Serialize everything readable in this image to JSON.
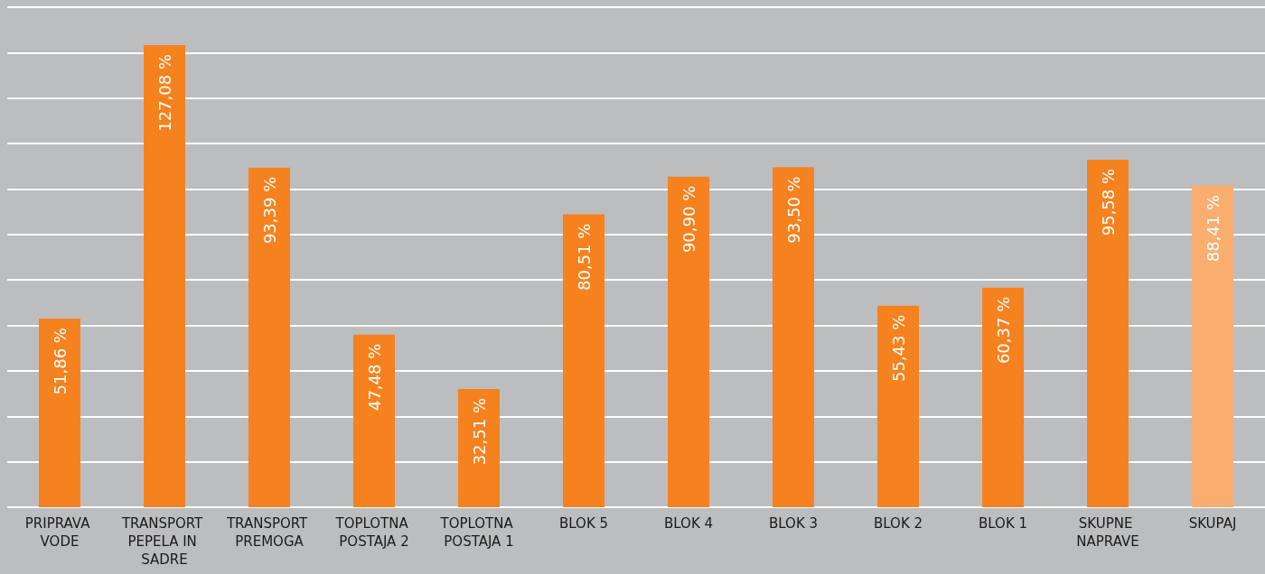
{
  "chart_data": {
    "type": "bar",
    "categories": [
      "PRIPRAVA VODE",
      "TRANSPORT PEPELA IN SADRE",
      "TRANSPORT PREMOGA",
      "TOPLOTNA POSTAJA 2",
      "TOPLOTNA POSTAJA 1",
      "BLOK 5",
      "BLOK 4",
      "BLOK 3",
      "BLOK 2",
      "BLOK 1",
      "SKUPNE NAPRAVE",
      "SKUPAJ"
    ],
    "values": [
      51.86,
      127.08,
      93.39,
      47.48,
      32.51,
      80.51,
      90.9,
      93.5,
      55.43,
      60.37,
      95.58,
      88.41
    ],
    "colors": [
      "#f5821f",
      "#f5821f",
      "#f5821f",
      "#f5821f",
      "#f5821f",
      "#f5821f",
      "#f5821f",
      "#f5821f",
      "#f5821f",
      "#f5821f",
      "#f5821f",
      "#f9ad6e"
    ],
    "value_labels": [
      "51,86 %",
      "127,08 %",
      "93,39 %",
      "47,48 %",
      "32,51 %",
      "80,51 %",
      "90,90 %",
      "93,50 %",
      "55,43 %",
      "60,37 %",
      "95,58 %",
      "88,41 %"
    ],
    "ylim": [
      0,
      137.5
    ],
    "yticks": [
      {
        "value": 0,
        "label": null
      },
      {
        "value": 12.5,
        "label": null
      },
      {
        "value": 25,
        "label": null
      },
      {
        "value": 37.5,
        "label": null
      },
      {
        "value": 50,
        "label": null
      },
      {
        "value": 62.5,
        "label": null
      },
      {
        "value": 75,
        "label": null
      },
      {
        "value": 87.5,
        "label": null
      },
      {
        "value": 100,
        "label": null
      },
      {
        "value": 112.5,
        "label": null
      },
      {
        "value": 125,
        "label": null
      },
      {
        "value": 137.5,
        "label": null
      }
    ],
    "grid": "y",
    "tick_labels": "x"
  }
}
